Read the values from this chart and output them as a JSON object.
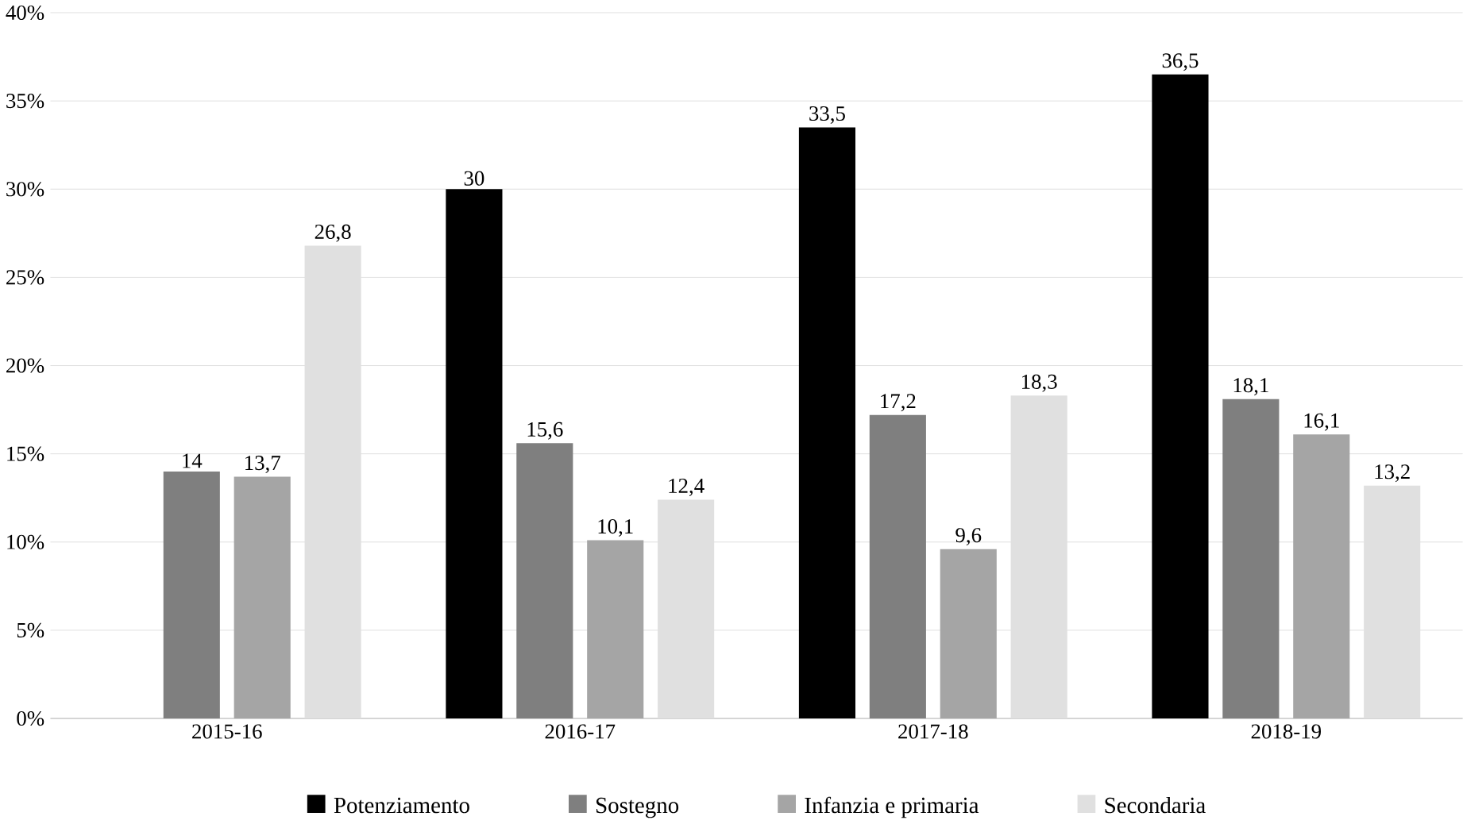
{
  "chart_data": {
    "type": "bar",
    "categories": [
      "2015-16",
      "2016-17",
      "2017-18",
      "2018-19"
    ],
    "series": [
      {
        "name": "Potenziamento",
        "color": "#000000",
        "values": [
          null,
          30,
          33.5,
          36.5
        ],
        "value_labels": [
          null,
          "30",
          "33,5",
          "36,5"
        ]
      },
      {
        "name": "Sostegno",
        "color": "#7f7f7f",
        "values": [
          14,
          15.6,
          17.2,
          18.1
        ],
        "value_labels": [
          "14",
          "15,6",
          "17,2",
          "18,1"
        ]
      },
      {
        "name": "Infanzia e primaria",
        "color": "#a5a5a5",
        "values": [
          13.7,
          10.1,
          9.6,
          16.1
        ],
        "value_labels": [
          "13,7",
          "10,1",
          "9,6",
          "16,1"
        ]
      },
      {
        "name": "Secondaria",
        "color": "#e0e0e0",
        "values": [
          26.8,
          12.4,
          18.3,
          13.2
        ],
        "value_labels": [
          "26,8",
          "12,4",
          "18,3",
          "13,2"
        ]
      }
    ],
    "ylim": [
      0,
      40
    ],
    "yticks": [
      {
        "value": 0,
        "label": "0%"
      },
      {
        "value": 5,
        "label": "5%"
      },
      {
        "value": 10,
        "label": "10%"
      },
      {
        "value": 15,
        "label": "15%"
      },
      {
        "value": 20,
        "label": "20%"
      },
      {
        "value": 25,
        "label": "25%"
      },
      {
        "value": 30,
        "label": "30%"
      },
      {
        "value": 35,
        "label": "35%"
      },
      {
        "value": 40,
        "label": "40%"
      }
    ],
    "grid": "y",
    "legend": "bottom"
  }
}
